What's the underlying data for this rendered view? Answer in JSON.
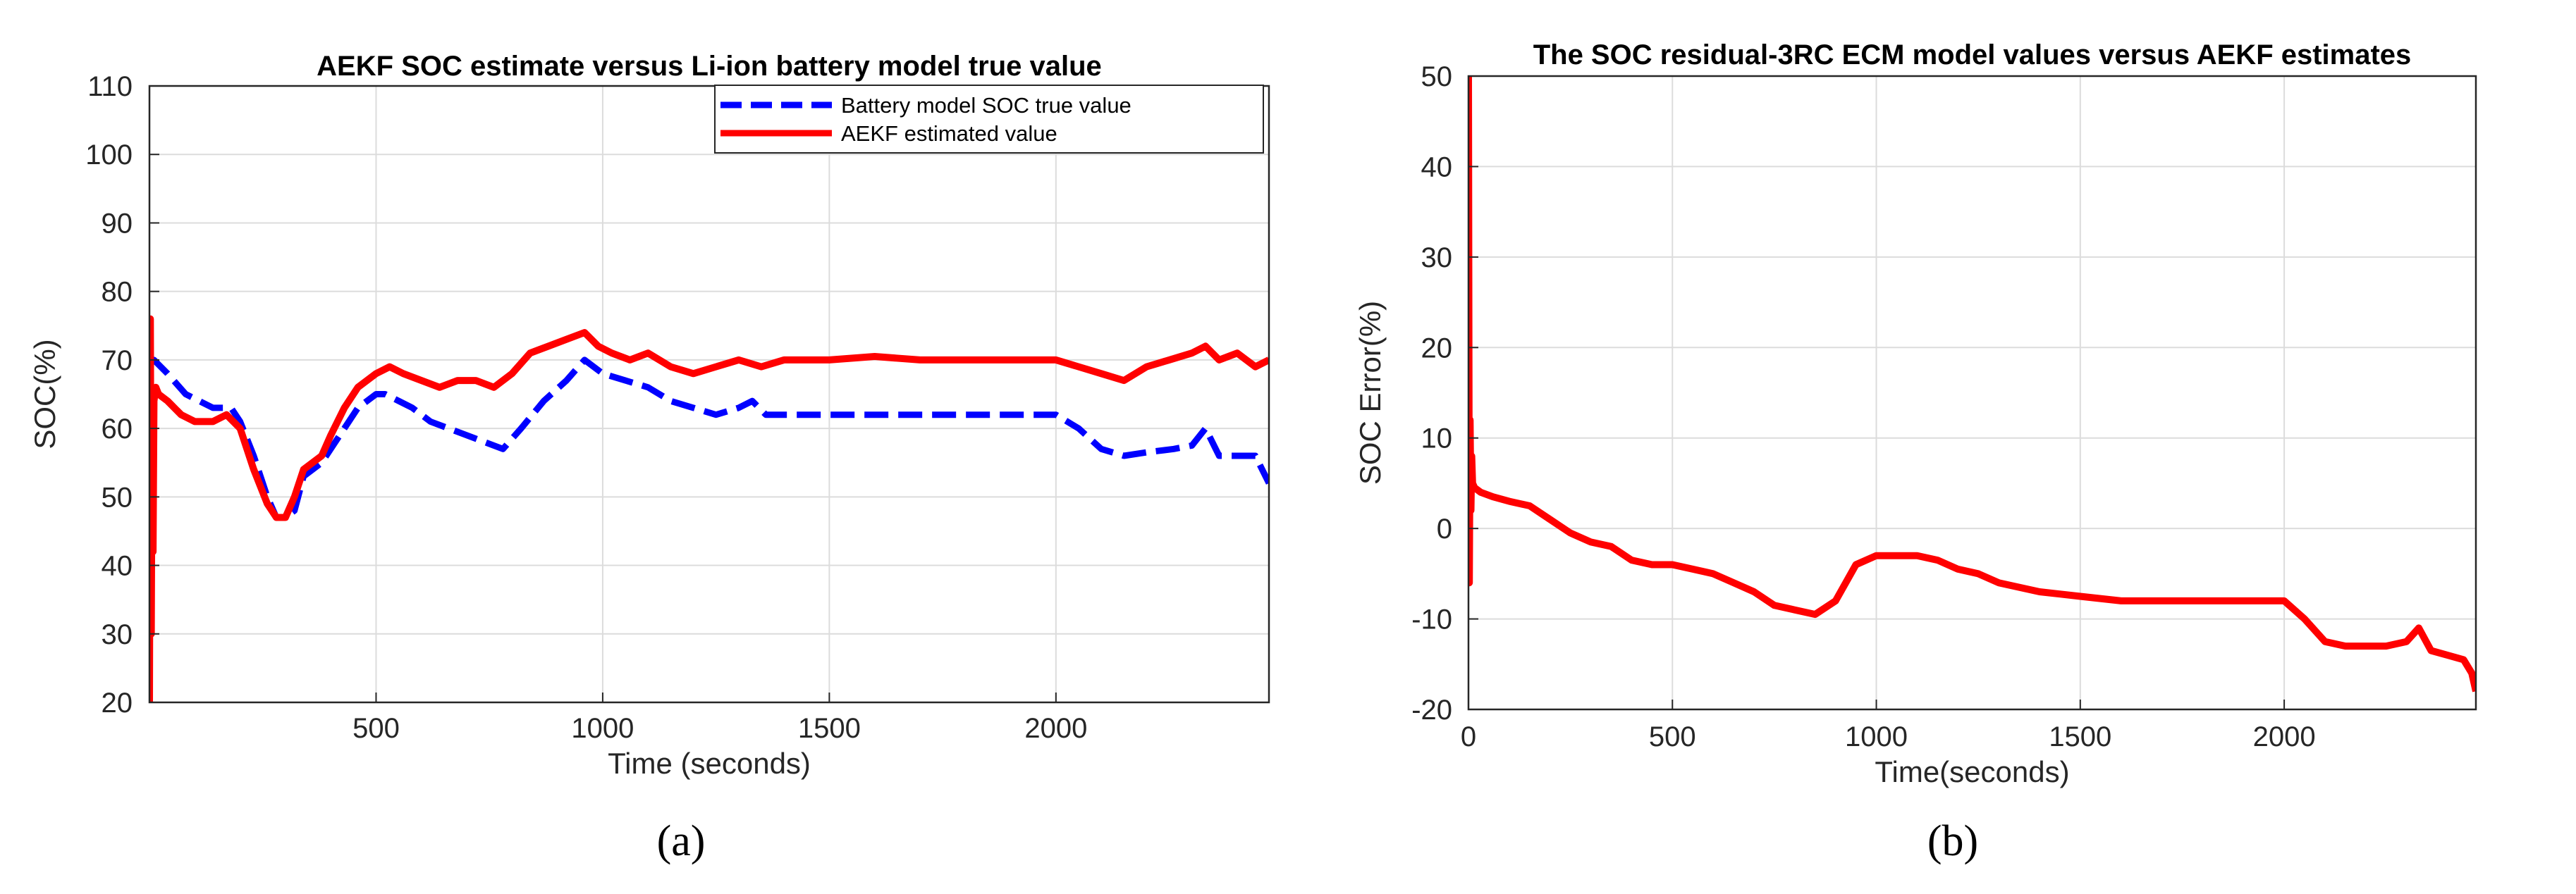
{
  "chart_data": [
    {
      "type": "line",
      "panel": "(a)",
      "title": "AEKF SOC estimate versus Li-ion battery model true value",
      "xlabel": "Time (seconds)",
      "ylabel": "SOC(%)",
      "xlim": [
        0,
        2470
      ],
      "ylim": [
        20,
        110
      ],
      "xticks": [
        500,
        1000,
        1500,
        2000
      ],
      "yticks": [
        20,
        30,
        40,
        50,
        60,
        70,
        80,
        90,
        100,
        110
      ],
      "grid": true,
      "legend": "top-right",
      "series": [
        {
          "name": "Battery model SOC true value",
          "color": "#0000ff",
          "style": "dashed",
          "x": [
            0,
            10,
            40,
            80,
            110,
            140,
            160,
            180,
            200,
            230,
            260,
            280,
            300,
            320,
            340,
            380,
            420,
            460,
            500,
            520,
            550,
            580,
            620,
            660,
            700,
            740,
            780,
            820,
            870,
            920,
            960,
            980,
            1000,
            1050,
            1100,
            1150,
            1200,
            1250,
            1300,
            1330,
            1360,
            1400,
            1500,
            1600,
            1700,
            1800,
            1900,
            2000,
            2050,
            2100,
            2150,
            2200,
            2260,
            2300,
            2330,
            2360,
            2400,
            2440,
            2470
          ],
          "values": [
            70,
            70,
            68,
            65,
            64,
            63,
            63,
            63,
            61,
            56,
            50,
            47,
            47,
            48,
            53,
            55,
            59,
            63,
            65,
            65,
            64,
            63,
            61,
            60,
            59,
            58,
            57,
            60,
            64,
            67,
            70,
            69,
            68,
            67,
            66,
            64,
            63,
            62,
            63,
            64,
            62,
            62,
            62,
            62,
            62,
            62,
            62,
            62,
            60,
            57,
            56,
            56.5,
            57,
            57.5,
            60,
            56,
            56,
            56,
            52
          ]
        },
        {
          "name": "AEKF estimated value",
          "color": "#ff0000",
          "style": "solid",
          "x": [
            0,
            2,
            4,
            6,
            8,
            10,
            14,
            20,
            40,
            70,
            100,
            140,
            170,
            200,
            230,
            260,
            280,
            300,
            320,
            340,
            380,
            400,
            430,
            460,
            500,
            530,
            560,
            600,
            640,
            680,
            720,
            760,
            800,
            840,
            880,
            920,
            960,
            990,
            1020,
            1060,
            1100,
            1150,
            1200,
            1250,
            1300,
            1350,
            1400,
            1500,
            1600,
            1700,
            1800,
            1900,
            2000,
            2050,
            2100,
            2150,
            2200,
            2250,
            2300,
            2330,
            2360,
            2400,
            2440,
            2470
          ],
          "values": [
            20,
            76,
            30,
            65,
            42,
            64,
            66,
            65,
            64,
            62,
            61,
            61,
            62,
            60,
            54,
            49,
            47,
            47,
            50,
            54,
            56,
            59,
            63,
            66,
            68,
            69,
            68,
            67,
            66,
            67,
            67,
            66,
            68,
            71,
            72,
            73,
            74,
            72,
            71,
            70,
            71,
            69,
            68,
            69,
            70,
            69,
            70,
            70,
            70.5,
            70,
            70,
            70,
            70,
            69,
            68,
            67,
            69,
            70,
            71,
            72,
            70,
            71,
            69,
            70
          ]
        }
      ]
    },
    {
      "type": "line",
      "panel": "(b)",
      "title": "The SOC residual-3RC ECM model values versus AEKF estimates",
      "xlabel": "Time(seconds)",
      "ylabel": "SOC Error(%)",
      "xlim": [
        0,
        2470
      ],
      "ylim": [
        -20,
        50
      ],
      "xticks": [
        0,
        500,
        1000,
        1500,
        2000
      ],
      "yticks": [
        -20,
        -10,
        0,
        10,
        20,
        30,
        40,
        50
      ],
      "grid": true,
      "series": [
        {
          "name": "SOC residual",
          "color": "#ff0000",
          "style": "solid",
          "x": [
            0,
            2,
            4,
            6,
            8,
            10,
            15,
            30,
            60,
            100,
            150,
            200,
            250,
            300,
            350,
            400,
            450,
            500,
            550,
            600,
            650,
            700,
            750,
            800,
            850,
            900,
            950,
            1000,
            1050,
            1100,
            1150,
            1200,
            1250,
            1300,
            1350,
            1400,
            1500,
            1600,
            1700,
            1800,
            1900,
            2000,
            2050,
            2100,
            2150,
            2200,
            2250,
            2300,
            2330,
            2360,
            2400,
            2440,
            2460,
            2470
          ],
          "values": [
            50,
            -6,
            12,
            2,
            8,
            5,
            4.5,
            4,
            3.5,
            3,
            2.5,
            1,
            -0.5,
            -1.5,
            -2,
            -3.5,
            -4,
            -4,
            -4.5,
            -5,
            -6,
            -7,
            -8.5,
            -9,
            -9.5,
            -8,
            -4,
            -3,
            -3,
            -3,
            -3.5,
            -4.5,
            -5,
            -6,
            -6.5,
            -7,
            -7.5,
            -8,
            -8,
            -8,
            -8,
            -8,
            -10,
            -12.5,
            -13,
            -13,
            -13,
            -12.5,
            -11,
            -13.5,
            -14,
            -14.5,
            -16,
            -18
          ]
        }
      ]
    }
  ],
  "captions": {
    "a": "(a)",
    "b": "(b)"
  }
}
